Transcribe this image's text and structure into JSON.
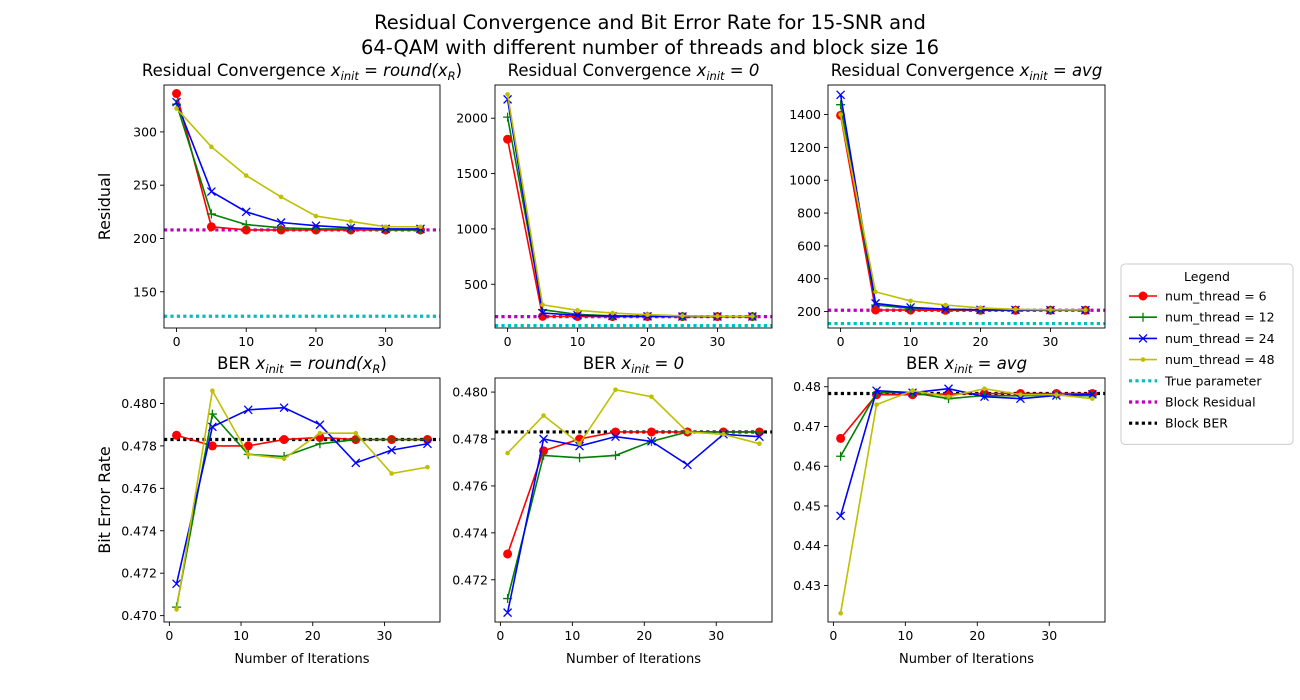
{
  "figure": {
    "title_line1": "Residual Convergence and Bit Error Rate for 15-SNR and",
    "title_line2": "64-QAM with different number of threads and block size 16"
  },
  "legend": {
    "title": "Legend",
    "entries": [
      {
        "label": "num_thread = 6",
        "color": "#ff0000",
        "marker": "circle",
        "style": "solid"
      },
      {
        "label": "num_thread = 12",
        "color": "#008000",
        "marker": "plus",
        "style": "solid"
      },
      {
        "label": "num_thread = 24",
        "color": "#0000ff",
        "marker": "x",
        "style": "solid"
      },
      {
        "label": "num_thread = 48",
        "color": "#bfbf00",
        "marker": "dot",
        "style": "solid"
      },
      {
        "label": "True parameter",
        "color": "#00bfbf",
        "marker": "none",
        "style": "dotted"
      },
      {
        "label": "Block Residual",
        "color": "#bf00bf",
        "marker": "none",
        "style": "dotted"
      },
      {
        "label": "Block BER",
        "color": "#000000",
        "marker": "none",
        "style": "dotted"
      }
    ]
  },
  "chart_data": [
    {
      "type": "line",
      "title_prefix": "Residual Convergence ",
      "title_math": "x",
      "title_sub": "init",
      "title_rest": " = round(x",
      "title_rest_sub": "R",
      "title_end": ")",
      "xlabel": "",
      "ylabel": "Residual",
      "xlim": [
        -1.8,
        37.8
      ],
      "ylim": [
        116,
        344
      ],
      "xticks": [
        0,
        10,
        20,
        30
      ],
      "yticks": [
        150,
        200,
        250,
        300
      ],
      "x": [
        0,
        5,
        10,
        15,
        20,
        25,
        30,
        35
      ],
      "series": [
        {
          "name": "num_thread = 6",
          "values": [
            336,
            211,
            208,
            208,
            208,
            208,
            208,
            208
          ]
        },
        {
          "name": "num_thread = 12",
          "values": [
            326,
            223,
            213,
            210,
            209,
            209,
            208,
            208
          ]
        },
        {
          "name": "num_thread = 24",
          "values": [
            328,
            244,
            225,
            215,
            212,
            210,
            209,
            209
          ]
        },
        {
          "name": "num_thread = 48",
          "values": [
            322,
            286,
            259,
            239,
            221,
            216,
            211,
            211
          ]
        }
      ],
      "hlines": [
        {
          "name": "True parameter",
          "value": 127
        },
        {
          "name": "Block Residual",
          "value": 208
        }
      ]
    },
    {
      "type": "line",
      "title_prefix": "Residual Convergence ",
      "title_math": "x",
      "title_sub": "init",
      "title_rest": " = 0",
      "title_rest_sub": "",
      "title_end": "",
      "xlabel": "",
      "ylabel": "",
      "xlim": [
        -1.8,
        37.8
      ],
      "ylim": [
        105,
        2300
      ],
      "xticks": [
        0,
        10,
        20,
        30
      ],
      "yticks": [
        500,
        1000,
        1500,
        2000
      ],
      "x": [
        0,
        5,
        10,
        15,
        20,
        25,
        30,
        35
      ],
      "series": [
        {
          "name": "num_thread = 6",
          "values": [
            1810,
            210,
            209,
            208,
            208,
            208,
            208,
            208
          ]
        },
        {
          "name": "num_thread = 12",
          "values": [
            2010,
            270,
            228,
            215,
            211,
            210,
            209,
            209
          ]
        },
        {
          "name": "num_thread = 24",
          "values": [
            2170,
            240,
            220,
            213,
            210,
            209,
            209,
            209
          ]
        },
        {
          "name": "num_thread = 48",
          "values": [
            2215,
            315,
            265,
            240,
            225,
            215,
            212,
            211
          ]
        }
      ],
      "hlines": [
        {
          "name": "True parameter",
          "value": 127
        },
        {
          "name": "Block Residual",
          "value": 208
        }
      ]
    },
    {
      "type": "line",
      "title_prefix": "Residual Convergence ",
      "title_math": "x",
      "title_sub": "init",
      "title_rest": " = avg",
      "title_rest_sub": "",
      "title_end": "",
      "xlabel": "",
      "ylabel": "",
      "xlim": [
        -1.8,
        37.8
      ],
      "ylim": [
        100,
        1580
      ],
      "xticks": [
        0,
        10,
        20,
        30
      ],
      "yticks": [
        200,
        400,
        600,
        800,
        1000,
        1200,
        1400
      ],
      "x": [
        0,
        5,
        10,
        15,
        20,
        25,
        30,
        35
      ],
      "series": [
        {
          "name": "num_thread = 6",
          "values": [
            1395,
            210,
            209,
            208,
            208,
            208,
            208,
            208
          ]
        },
        {
          "name": "num_thread = 12",
          "values": [
            1460,
            240,
            220,
            213,
            210,
            209,
            209,
            209
          ]
        },
        {
          "name": "num_thread = 24",
          "values": [
            1520,
            250,
            225,
            215,
            211,
            210,
            209,
            209
          ]
        },
        {
          "name": "num_thread = 48",
          "values": [
            1400,
            320,
            265,
            240,
            222,
            214,
            211,
            210
          ]
        }
      ],
      "hlines": [
        {
          "name": "True parameter",
          "value": 127
        },
        {
          "name": "Block Residual",
          "value": 208
        }
      ]
    },
    {
      "type": "line",
      "title_prefix": "BER ",
      "title_math": "x",
      "title_sub": "init",
      "title_rest": " = round(x",
      "title_rest_sub": "R",
      "title_end": ")",
      "xlabel": "Number of Iterations",
      "ylabel": "Bit Error Rate",
      "xlim": [
        -0.75,
        37.75
      ],
      "ylim": [
        0.4697,
        0.4812
      ],
      "xticks": [
        0,
        10,
        20,
        30
      ],
      "yticks": [
        0.47,
        0.472,
        0.474,
        0.476,
        0.478,
        0.48
      ],
      "tick_decimals": 3,
      "x": [
        1,
        6,
        11,
        16,
        21,
        26,
        31,
        36
      ],
      "series": [
        {
          "name": "num_thread = 6",
          "values": [
            0.4785,
            0.478,
            0.478,
            0.4783,
            0.4784,
            0.4783,
            0.4783,
            0.4783
          ]
        },
        {
          "name": "num_thread = 12",
          "values": [
            0.4704,
            0.4795,
            0.4776,
            0.4775,
            0.4781,
            0.4783,
            0.4783,
            0.4783
          ]
        },
        {
          "name": "num_thread = 24",
          "values": [
            0.4715,
            0.4789,
            0.4797,
            0.4798,
            0.479,
            0.4772,
            0.4778,
            0.4781
          ]
        },
        {
          "name": "num_thread = 48",
          "values": [
            0.4703,
            0.4806,
            0.4776,
            0.4774,
            0.4786,
            0.4786,
            0.4767,
            0.477
          ]
        }
      ],
      "hlines": [
        {
          "name": "Block BER",
          "value": 0.4783
        }
      ]
    },
    {
      "type": "line",
      "title_prefix": "BER ",
      "title_math": "x",
      "title_sub": "init",
      "title_rest": " = 0",
      "title_rest_sub": "",
      "title_end": "",
      "xlabel": "Number of Iterations",
      "ylabel": "",
      "xlim": [
        -0.75,
        37.75
      ],
      "ylim": [
        0.4702,
        0.4806
      ],
      "xticks": [
        0,
        10,
        20,
        30
      ],
      "yticks": [
        0.472,
        0.474,
        0.476,
        0.478,
        0.48
      ],
      "tick_decimals": 3,
      "x": [
        1,
        6,
        11,
        16,
        21,
        26,
        31,
        36
      ],
      "series": [
        {
          "name": "num_thread = 6",
          "values": [
            0.4731,
            0.4775,
            0.478,
            0.4783,
            0.4783,
            0.4783,
            0.4783,
            0.4783
          ]
        },
        {
          "name": "num_thread = 12",
          "values": [
            0.4712,
            0.4773,
            0.4772,
            0.4773,
            0.4779,
            0.4783,
            0.4783,
            0.4783
          ]
        },
        {
          "name": "num_thread = 24",
          "values": [
            0.4706,
            0.478,
            0.4777,
            0.4781,
            0.4779,
            0.4769,
            0.4782,
            0.4781
          ]
        },
        {
          "name": "num_thread = 48",
          "values": [
            0.4774,
            0.479,
            0.4778,
            0.4801,
            0.4798,
            0.4783,
            0.4782,
            0.4778
          ]
        }
      ],
      "hlines": [
        {
          "name": "Block BER",
          "value": 0.4783
        }
      ]
    },
    {
      "type": "line",
      "title_prefix": "BER ",
      "title_math": "x",
      "title_sub": "init",
      "title_rest": " = avg",
      "title_rest_sub": "",
      "title_end": "",
      "xlabel": "Number of Iterations",
      "ylabel": "",
      "xlim": [
        -0.75,
        37.75
      ],
      "ylim": [
        0.4208,
        0.4822
      ],
      "xticks": [
        0,
        10,
        20,
        30
      ],
      "yticks": [
        0.43,
        0.44,
        0.45,
        0.46,
        0.47,
        0.48
      ],
      "tick_decimals": 2,
      "x": [
        1,
        6,
        11,
        16,
        21,
        26,
        31,
        36
      ],
      "series": [
        {
          "name": "num_thread = 6",
          "values": [
            0.467,
            0.478,
            0.478,
            0.4782,
            0.4783,
            0.4783,
            0.4783,
            0.4783
          ]
        },
        {
          "name": "num_thread = 12",
          "values": [
            0.4625,
            0.4785,
            0.4785,
            0.477,
            0.4778,
            0.4777,
            0.4779,
            0.4777
          ]
        },
        {
          "name": "num_thread = 24",
          "values": [
            0.4475,
            0.479,
            0.4785,
            0.4795,
            0.4775,
            0.477,
            0.4778,
            0.4781
          ]
        },
        {
          "name": "num_thread = 48",
          "values": [
            0.423,
            0.4755,
            0.479,
            0.4775,
            0.4795,
            0.478,
            0.478,
            0.477
          ]
        }
      ],
      "hlines": [
        {
          "name": "Block BER",
          "value": 0.4783
        }
      ]
    }
  ]
}
